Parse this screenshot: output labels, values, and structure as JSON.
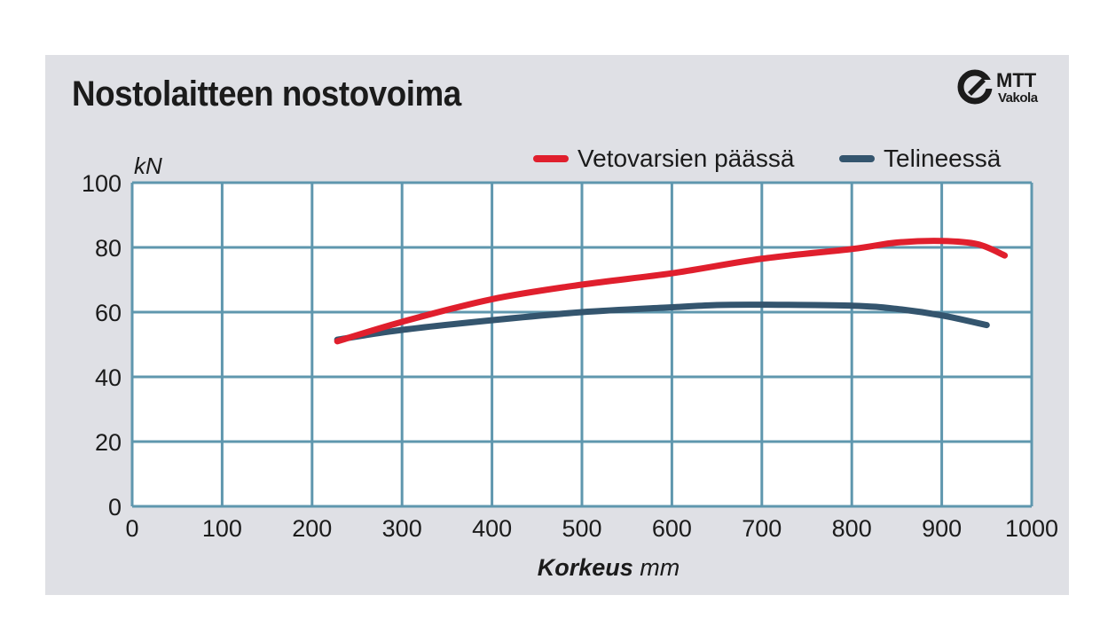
{
  "title": "Nostolaitteen nostovoima",
  "logo": {
    "line1": "MTT",
    "line2": "Vakola"
  },
  "colors": {
    "panel": "#dfe0e5",
    "plot": "#ffffff",
    "grid": "#5f97ae",
    "red": "#e01f2d",
    "blue": "#34556e",
    "text": "#1b1b1b"
  },
  "legend": {
    "items": [
      {
        "label": "Vetovarsien päässä",
        "color": "#e01f2d"
      },
      {
        "label": "Telineessä",
        "color": "#34556e"
      }
    ]
  },
  "chart_data": {
    "type": "line",
    "title": "Nostolaitteen nostovoima",
    "xlabel_bold": "Korkeus",
    "xlabel_unit": "mm",
    "ylabel": "kN",
    "xlim": [
      0,
      1000
    ],
    "ylim": [
      0,
      100
    ],
    "xticks": [
      0,
      100,
      200,
      300,
      400,
      500,
      600,
      700,
      800,
      900,
      1000
    ],
    "yticks": [
      0,
      20,
      40,
      60,
      80,
      100
    ],
    "grid": true,
    "legend_position": "top-right",
    "series": [
      {
        "name": "Vetovarsien päässä",
        "color": "#e01f2d",
        "x": [
          228,
          300,
          400,
          500,
          600,
          700,
          800,
          850,
          900,
          940,
          970
        ],
        "y": [
          51,
          57,
          64,
          68.5,
          72,
          76.5,
          79.5,
          81.5,
          82,
          81,
          77.5
        ]
      },
      {
        "name": "Telineessä",
        "color": "#34556e",
        "x": [
          228,
          300,
          400,
          500,
          600,
          650,
          700,
          800,
          850,
          900,
          950
        ],
        "y": [
          51.5,
          54.5,
          57.5,
          60,
          61.5,
          62.2,
          62.3,
          62,
          61,
          59,
          56
        ]
      }
    ]
  }
}
